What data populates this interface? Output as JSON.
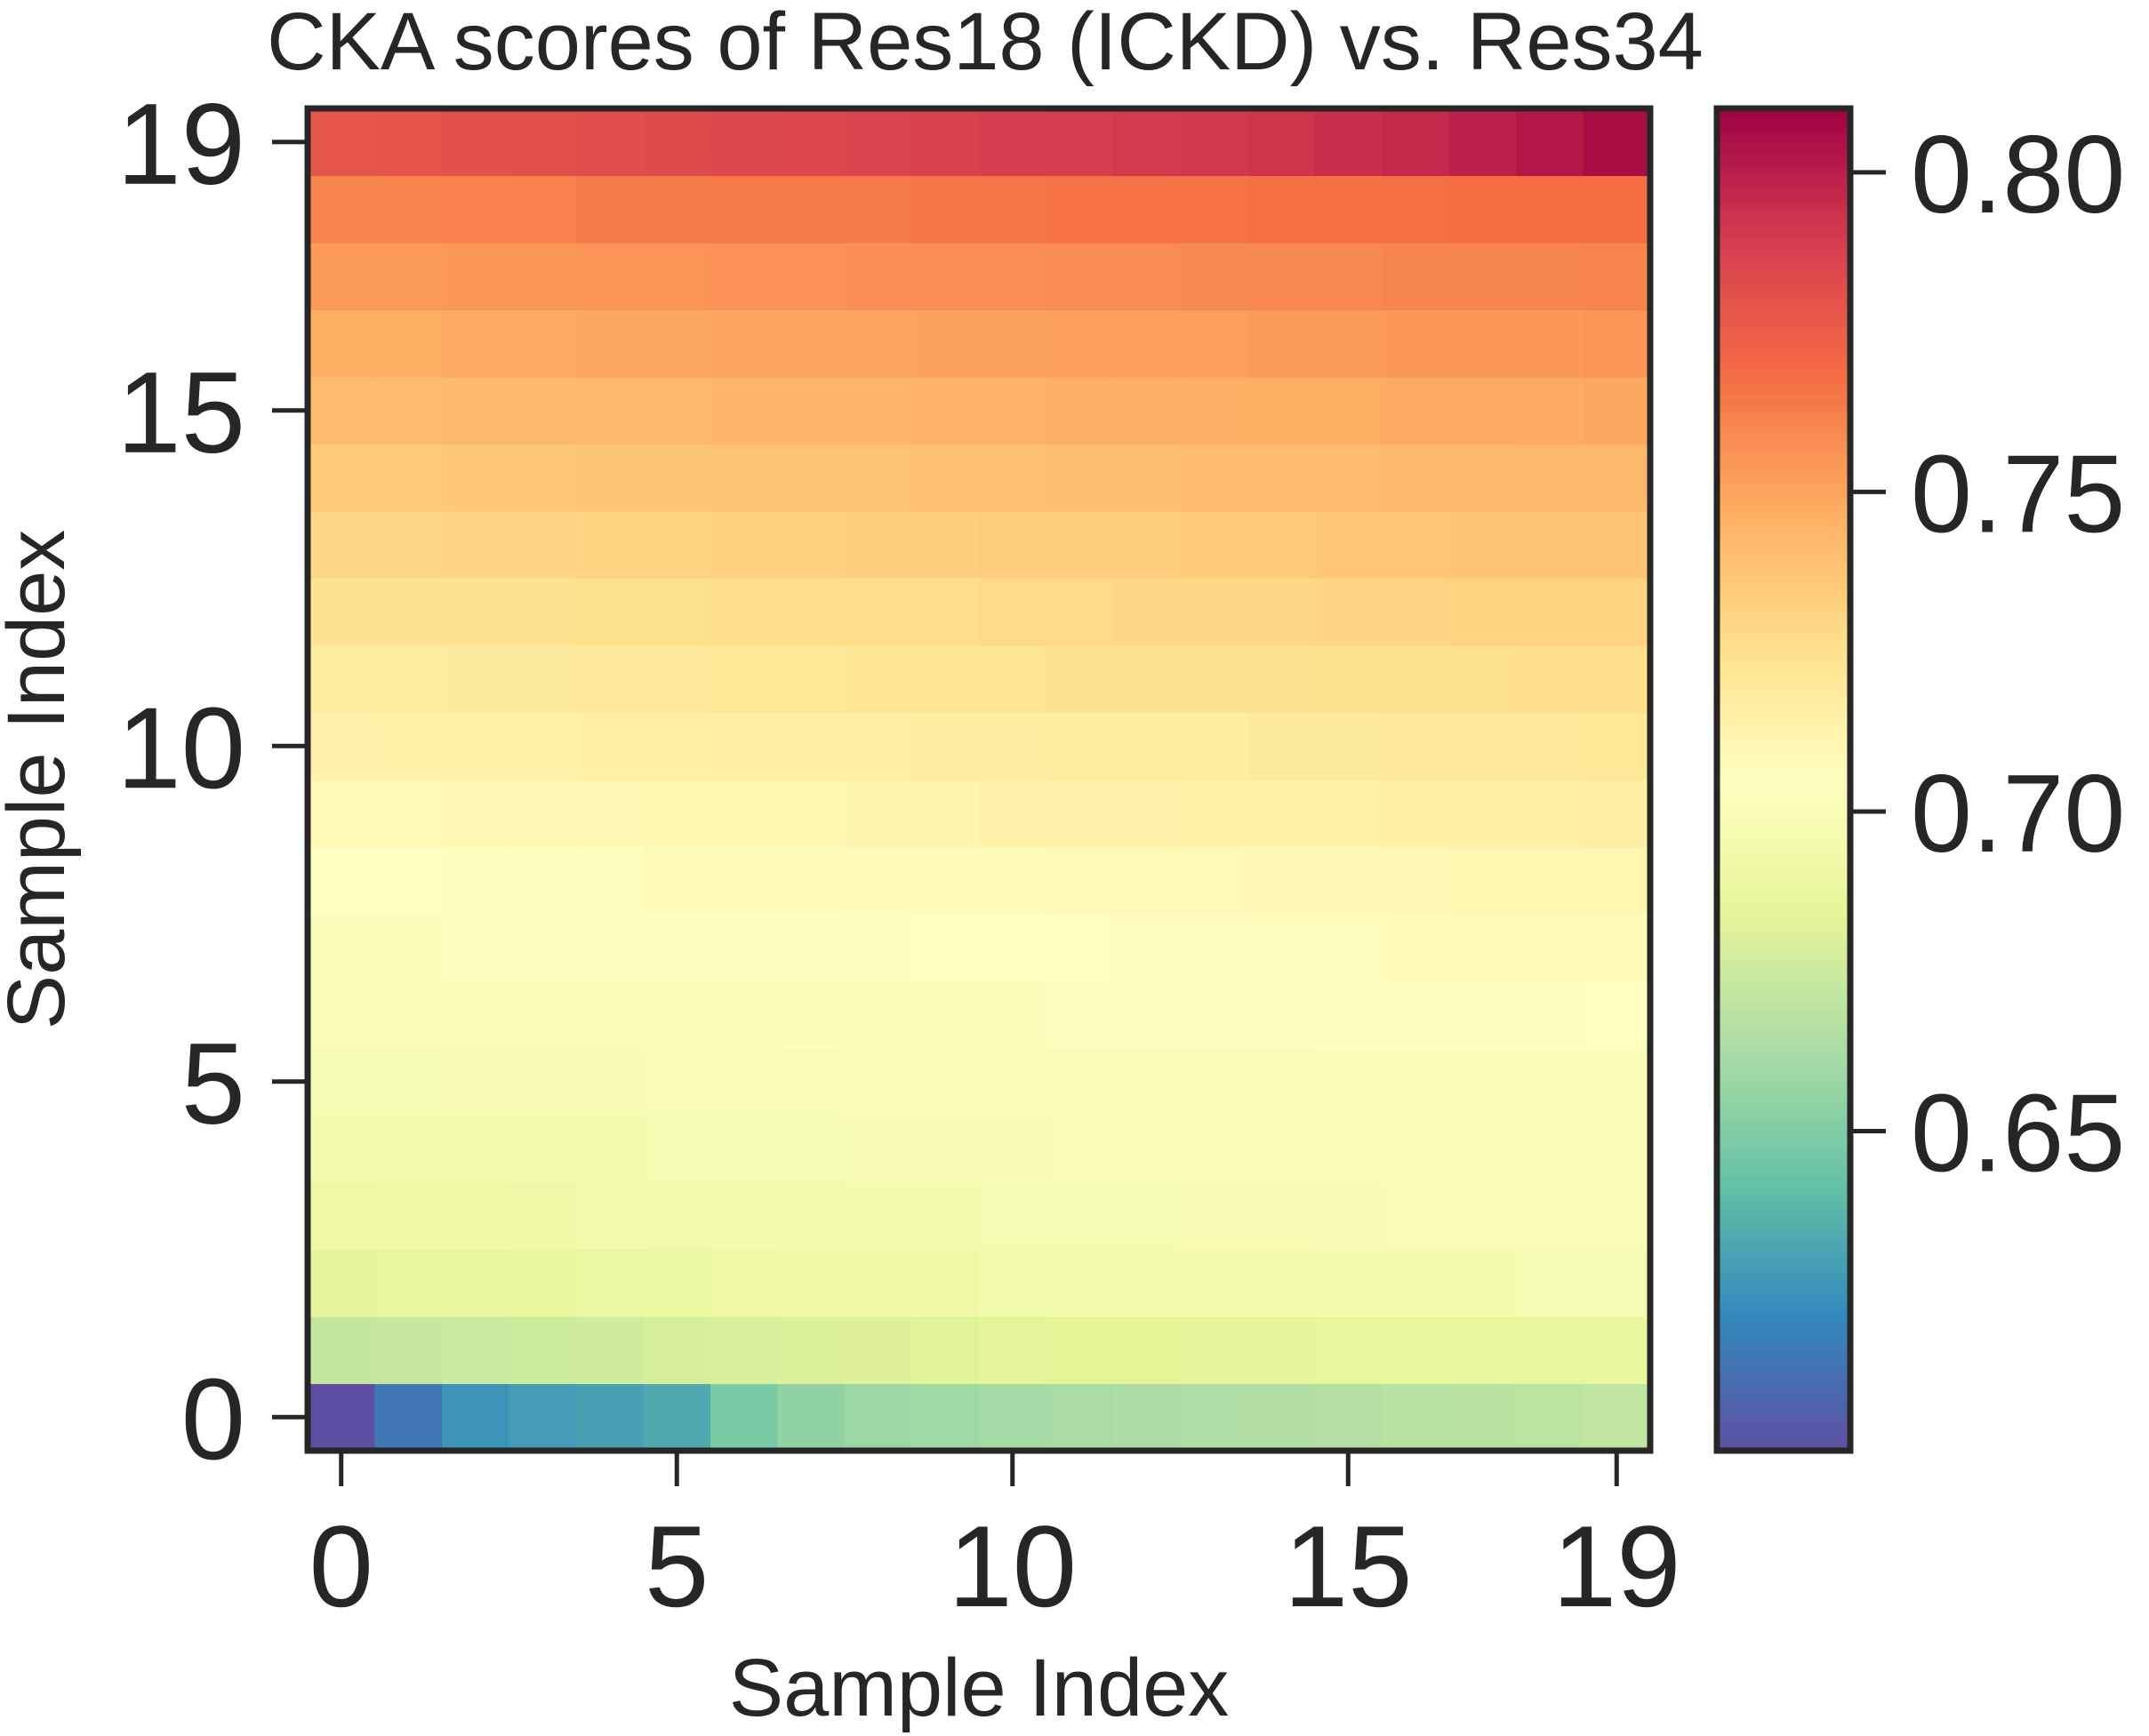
{
  "chart_data": {
    "type": "heatmap",
    "title": "CKA scores of Res18 (ICKD)  vs. Res34",
    "xlabel": "Sample Index",
    "ylabel": "Sample Index",
    "x_ticks": [
      0,
      5,
      10,
      15,
      19
    ],
    "y_ticks": [
      0,
      5,
      10,
      15,
      19
    ],
    "x_tick_labels": [
      "0",
      "5",
      "10",
      "15",
      "19"
    ],
    "y_tick_labels": [
      "0",
      "5",
      "10",
      "15",
      "19"
    ],
    "y_origin": "bottom",
    "colormap": "Spectral_r",
    "colorbar": {
      "vmin": 0.6,
      "vmax": 0.81,
      "ticks": [
        0.65,
        0.7,
        0.75,
        0.8
      ],
      "tick_labels": [
        "0.65",
        "0.70",
        "0.75",
        "0.80"
      ]
    },
    "rows": [
      [
        0.6,
        0.615,
        0.625,
        0.628,
        0.63,
        0.633,
        0.648,
        0.655,
        0.658,
        0.66,
        0.661,
        0.662,
        0.663,
        0.664,
        0.665,
        0.666,
        0.667,
        0.668,
        0.669,
        0.67
      ],
      [
        0.672,
        0.673,
        0.674,
        0.675,
        0.676,
        0.678,
        0.679,
        0.68,
        0.681,
        0.682,
        0.683,
        0.684,
        0.684,
        0.685,
        0.685,
        0.686,
        0.686,
        0.687,
        0.687,
        0.688
      ],
      [
        0.685,
        0.686,
        0.687,
        0.688,
        0.689,
        0.69,
        0.691,
        0.692,
        0.693,
        0.693,
        0.694,
        0.694,
        0.695,
        0.695,
        0.695,
        0.696,
        0.696,
        0.696,
        0.697,
        0.697
      ],
      [
        0.691,
        0.692,
        0.693,
        0.693,
        0.694,
        0.694,
        0.695,
        0.695,
        0.696,
        0.696,
        0.697,
        0.697,
        0.697,
        0.698,
        0.698,
        0.698,
        0.699,
        0.699,
        0.699,
        0.699
      ],
      [
        0.694,
        0.695,
        0.695,
        0.696,
        0.696,
        0.697,
        0.697,
        0.697,
        0.698,
        0.698,
        0.698,
        0.699,
        0.699,
        0.699,
        0.699,
        0.7,
        0.7,
        0.7,
        0.7,
        0.701
      ],
      [
        0.697,
        0.697,
        0.698,
        0.698,
        0.698,
        0.699,
        0.699,
        0.699,
        0.7,
        0.7,
        0.7,
        0.7,
        0.701,
        0.701,
        0.701,
        0.701,
        0.702,
        0.702,
        0.702,
        0.702
      ],
      [
        0.7,
        0.7,
        0.7,
        0.701,
        0.701,
        0.701,
        0.701,
        0.702,
        0.702,
        0.702,
        0.702,
        0.703,
        0.703,
        0.703,
        0.703,
        0.704,
        0.704,
        0.704,
        0.704,
        0.705
      ],
      [
        0.702,
        0.702,
        0.703,
        0.703,
        0.703,
        0.704,
        0.704,
        0.704,
        0.704,
        0.705,
        0.705,
        0.705,
        0.706,
        0.706,
        0.706,
        0.706,
        0.707,
        0.707,
        0.707,
        0.708
      ],
      [
        0.705,
        0.705,
        0.706,
        0.706,
        0.706,
        0.707,
        0.707,
        0.707,
        0.708,
        0.708,
        0.708,
        0.709,
        0.709,
        0.709,
        0.71,
        0.71,
        0.71,
        0.711,
        0.711,
        0.711
      ],
      [
        0.709,
        0.709,
        0.71,
        0.71,
        0.71,
        0.711,
        0.711,
        0.711,
        0.712,
        0.712,
        0.713,
        0.713,
        0.713,
        0.714,
        0.714,
        0.714,
        0.715,
        0.715,
        0.715,
        0.716
      ],
      [
        0.713,
        0.714,
        0.714,
        0.714,
        0.715,
        0.715,
        0.716,
        0.716,
        0.716,
        0.717,
        0.717,
        0.718,
        0.718,
        0.718,
        0.719,
        0.719,
        0.72,
        0.72,
        0.72,
        0.721
      ],
      [
        0.718,
        0.718,
        0.719,
        0.719,
        0.72,
        0.72,
        0.721,
        0.721,
        0.722,
        0.722,
        0.722,
        0.723,
        0.723,
        0.724,
        0.724,
        0.725,
        0.725,
        0.725,
        0.726,
        0.726
      ],
      [
        0.723,
        0.723,
        0.724,
        0.724,
        0.725,
        0.725,
        0.726,
        0.726,
        0.727,
        0.727,
        0.728,
        0.728,
        0.729,
        0.729,
        0.729,
        0.73,
        0.73,
        0.731,
        0.731,
        0.731
      ],
      [
        0.729,
        0.729,
        0.73,
        0.73,
        0.731,
        0.731,
        0.732,
        0.732,
        0.733,
        0.733,
        0.734,
        0.734,
        0.734,
        0.735,
        0.735,
        0.736,
        0.736,
        0.737,
        0.737,
        0.737
      ],
      [
        0.735,
        0.735,
        0.736,
        0.736,
        0.737,
        0.737,
        0.738,
        0.738,
        0.738,
        0.739,
        0.739,
        0.74,
        0.74,
        0.741,
        0.741,
        0.741,
        0.742,
        0.742,
        0.743,
        0.743
      ],
      [
        0.741,
        0.741,
        0.742,
        0.742,
        0.743,
        0.743,
        0.744,
        0.744,
        0.744,
        0.745,
        0.745,
        0.746,
        0.746,
        0.746,
        0.747,
        0.747,
        0.748,
        0.748,
        0.748,
        0.749
      ],
      [
        0.747,
        0.747,
        0.748,
        0.748,
        0.749,
        0.749,
        0.75,
        0.75,
        0.75,
        0.751,
        0.751,
        0.752,
        0.752,
        0.752,
        0.753,
        0.753,
        0.754,
        0.754,
        0.754,
        0.755
      ],
      [
        0.753,
        0.753,
        0.754,
        0.754,
        0.755,
        0.755,
        0.756,
        0.756,
        0.757,
        0.757,
        0.757,
        0.758,
        0.758,
        0.759,
        0.759,
        0.759,
        0.76,
        0.76,
        0.76,
        0.761
      ],
      [
        0.761,
        0.761,
        0.762,
        0.762,
        0.763,
        0.763,
        0.764,
        0.764,
        0.764,
        0.765,
        0.765,
        0.766,
        0.766,
        0.766,
        0.767,
        0.767,
        0.767,
        0.768,
        0.768,
        0.768
      ],
      [
        0.778,
        0.779,
        0.78,
        0.781,
        0.782,
        0.783,
        0.784,
        0.785,
        0.786,
        0.787,
        0.788,
        0.789,
        0.79,
        0.791,
        0.792,
        0.794,
        0.796,
        0.799,
        0.802,
        0.806
      ]
    ]
  }
}
